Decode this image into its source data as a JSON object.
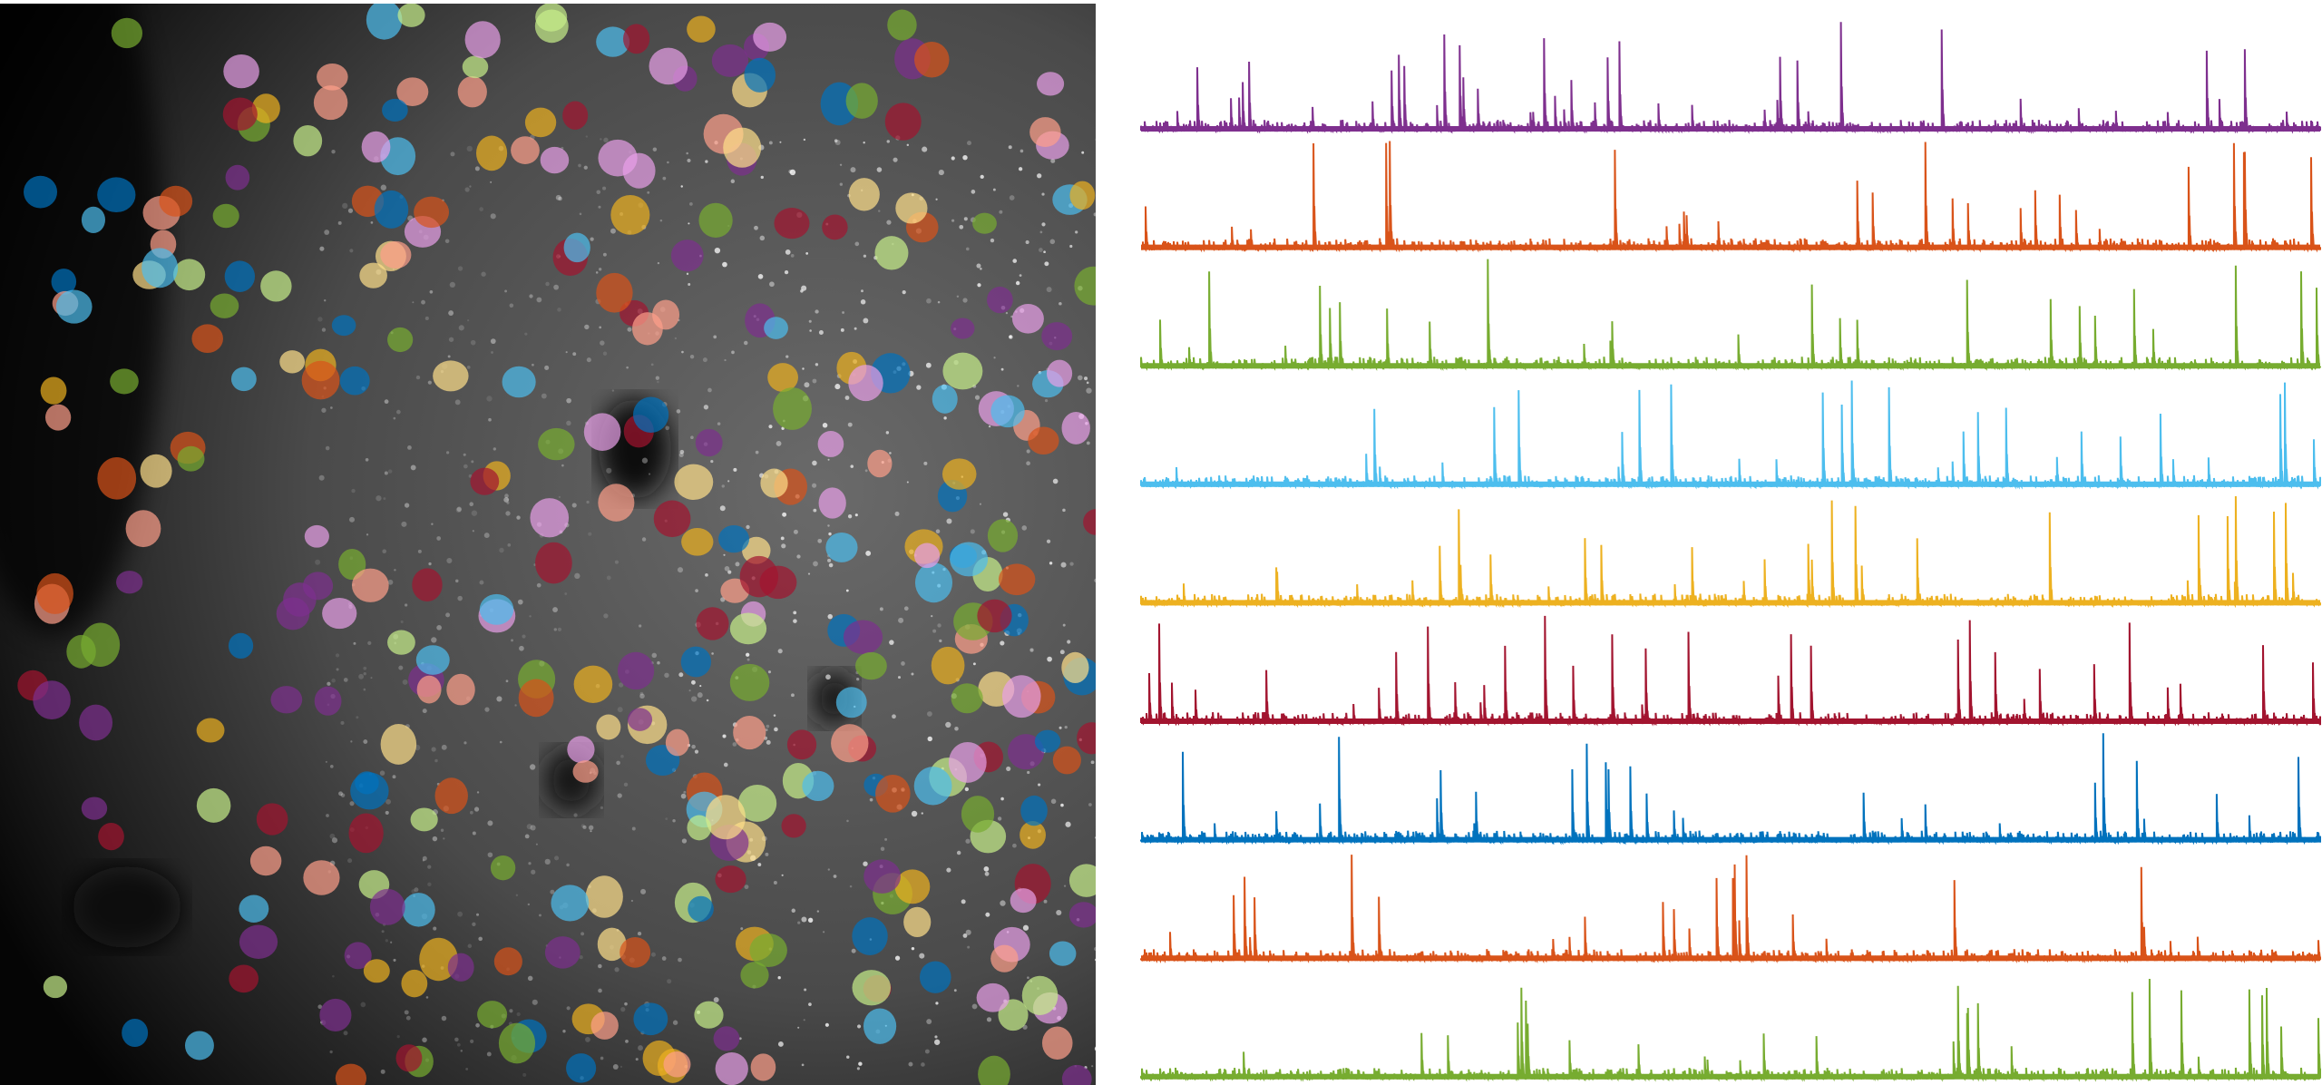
{
  "image": {
    "roi_colors": [
      "#4dbeee",
      "#0072bd",
      "#d95319",
      "#edb120",
      "#77ac30",
      "#a2142f",
      "#7e2f8e",
      "#ff9f8a",
      "#e8a0e8",
      "#c8f08a",
      "#ffe08a"
    ]
  },
  "traces": [
    {
      "color": "#7e2f8e"
    },
    {
      "color": "#d95319"
    },
    {
      "color": "#77ac30"
    },
    {
      "color": "#4dbeee"
    },
    {
      "color": "#edb120"
    },
    {
      "color": "#a2142f"
    },
    {
      "color": "#0072bd"
    },
    {
      "color": "#d95319"
    },
    {
      "color": "#77ac30"
    }
  ]
}
